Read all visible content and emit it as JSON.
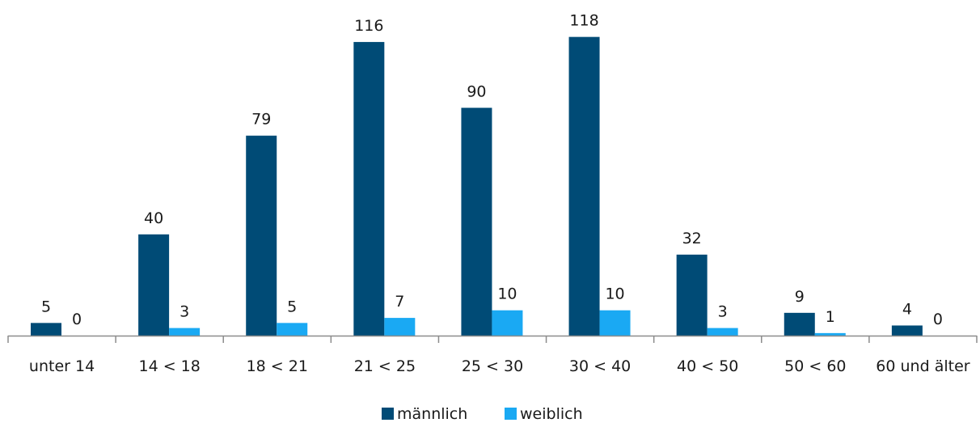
{
  "chart_data": {
    "type": "bar",
    "categories": [
      "unter 14",
      "14 < 18",
      "18 < 21",
      "21 < 25",
      "25 < 30",
      "30 < 40",
      "40 < 50",
      "50 < 60",
      "60 und älter"
    ],
    "series": [
      {
        "name": "männlich",
        "values": [
          5,
          40,
          79,
          116,
          90,
          118,
          32,
          9,
          4
        ],
        "color": "#004b76"
      },
      {
        "name": "weiblich",
        "values": [
          0,
          3,
          5,
          7,
          10,
          10,
          3,
          1,
          0
        ],
        "color": "#1aa9f3"
      }
    ],
    "title": "",
    "xlabel": "",
    "ylabel": "",
    "ylim": [
      0,
      120
    ],
    "grid": false,
    "legend": "bottom-center",
    "data_labels": true
  }
}
